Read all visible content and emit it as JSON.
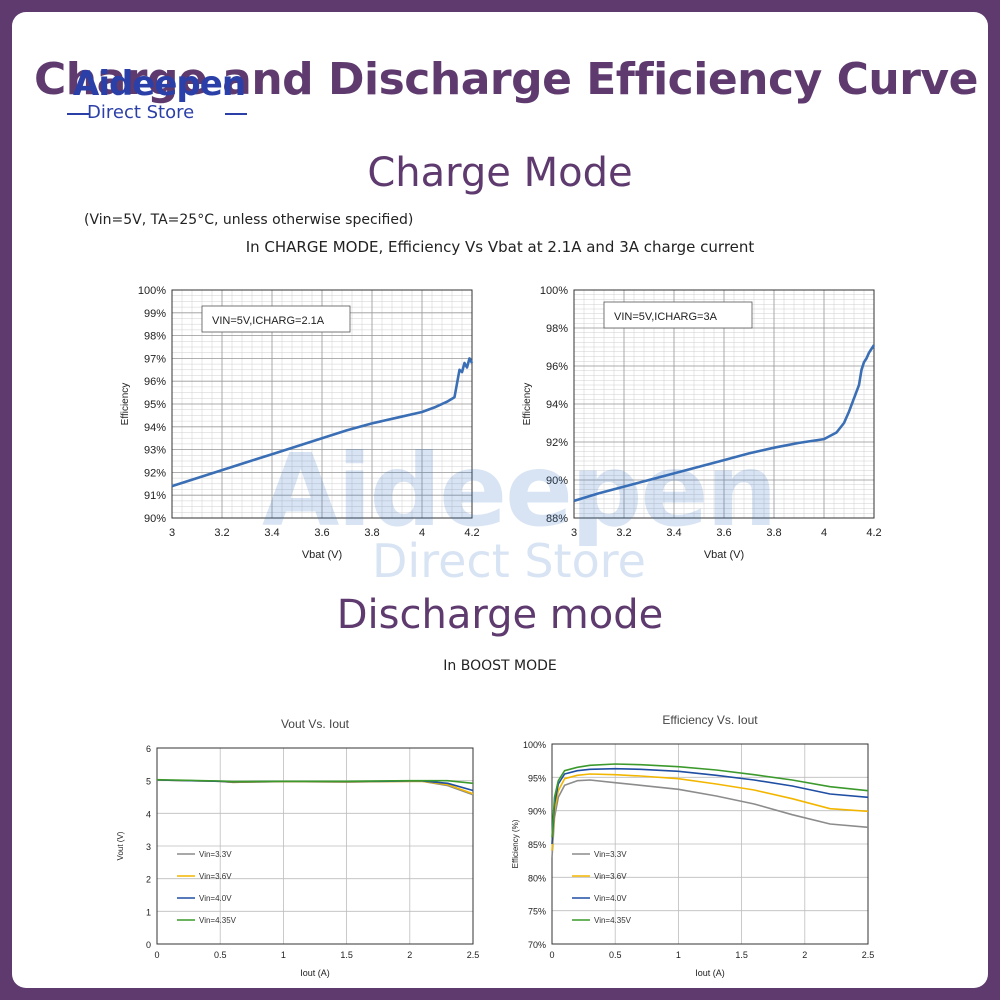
{
  "page": {
    "title": "Charge and Discharge Efficiency Curve",
    "logo_name": "Aideepen",
    "logo_sub": "Direct Store",
    "charge_heading": "Charge Mode",
    "conditions_note": "(Vin=5V, TA=25°C, unless otherwise specified)",
    "charge_caption": "In CHARGE MODE, Efficiency Vs Vbat at 2.1A and 3A charge current",
    "discharge_heading": "Discharge mode",
    "boost_caption": "In BOOST MODE",
    "watermark_name": "Aideepen",
    "watermark_sub": "Direct Store"
  },
  "colors": {
    "brand_purple": "#5e3a6e",
    "curve_blue": "#3a6eb5",
    "vin_3_3": "#8c8c8c",
    "vin_3_6": "#f2b600",
    "vin_4_0": "#1f4ea3",
    "vin_4_35": "#3c9a2c"
  },
  "chart_data": [
    {
      "type": "line",
      "annotation": "VIN=5V,ICHARG=2.1A",
      "xlabel": "Vbat (V)",
      "ylabel": "Efficiency",
      "xlim": [
        3,
        4.2
      ],
      "ylim": [
        90,
        100
      ],
      "x_ticks": [
        "3",
        "3.2",
        "3.4",
        "3.6",
        "3.8",
        "4",
        "4.2"
      ],
      "y_ticks": [
        "90%",
        "91%",
        "92%",
        "93%",
        "94%",
        "95%",
        "96%",
        "97%",
        "98%",
        "99%",
        "100%"
      ],
      "grid": true,
      "series": [
        {
          "x": [
            3.0,
            3.1,
            3.2,
            3.3,
            3.4,
            3.5,
            3.6,
            3.7,
            3.8,
            3.9,
            4.0,
            4.05,
            4.1,
            4.13,
            4.15,
            4.16,
            4.17,
            4.18,
            4.19,
            4.2
          ],
          "values": [
            91.4,
            91.75,
            92.1,
            92.45,
            92.8,
            93.15,
            93.5,
            93.85,
            94.15,
            94.4,
            94.65,
            94.85,
            95.1,
            95.3,
            96.5,
            96.4,
            96.8,
            96.6,
            97.0,
            96.8
          ]
        }
      ]
    },
    {
      "type": "line",
      "annotation": "VIN=5V,ICHARG=3A",
      "xlabel": "Vbat (V)",
      "ylabel": "Efficiency",
      "xlim": [
        3,
        4.2
      ],
      "ylim": [
        88,
        100
      ],
      "x_ticks": [
        "3",
        "3.2",
        "3.4",
        "3.6",
        "3.8",
        "4",
        "4.2"
      ],
      "y_ticks": [
        "88%",
        "90%",
        "92%",
        "94%",
        "96%",
        "98%",
        "100%"
      ],
      "grid": true,
      "series": [
        {
          "x": [
            3.0,
            3.1,
            3.2,
            3.3,
            3.4,
            3.5,
            3.6,
            3.7,
            3.8,
            3.9,
            4.0,
            4.05,
            4.08,
            4.1,
            4.12,
            4.14,
            4.15,
            4.16,
            4.17,
            4.18,
            4.19,
            4.2
          ],
          "values": [
            88.9,
            89.3,
            89.65,
            90.0,
            90.35,
            90.7,
            91.05,
            91.4,
            91.7,
            91.95,
            92.15,
            92.5,
            93.0,
            93.6,
            94.3,
            95.0,
            95.8,
            96.2,
            96.4,
            96.7,
            96.9,
            97.1
          ]
        }
      ]
    },
    {
      "type": "line",
      "title": "Vout Vs. Iout",
      "xlabel": "Iout (A)",
      "ylabel": "Vout (V)",
      "xlim": [
        0,
        2.5
      ],
      "ylim": [
        0,
        6
      ],
      "x_ticks": [
        "0",
        "0.5",
        "1",
        "1.5",
        "2",
        "2.5"
      ],
      "y_ticks": [
        "0",
        "1",
        "2",
        "3",
        "4",
        "5",
        "6"
      ],
      "grid": true,
      "legend": "left",
      "series": [
        {
          "name": "Vin=3.3V",
          "x": [
            0,
            0.5,
            0.6,
            1.0,
            1.5,
            2.0,
            2.1,
            2.3,
            2.5
          ],
          "values": [
            5.02,
            4.98,
            4.95,
            4.97,
            4.96,
            4.98,
            4.98,
            4.85,
            4.57
          ]
        },
        {
          "name": "Vin=3.6V",
          "x": [
            0,
            0.5,
            0.6,
            1.0,
            1.5,
            2.0,
            2.1,
            2.3,
            2.5
          ],
          "values": [
            5.02,
            4.98,
            4.95,
            4.97,
            4.96,
            4.98,
            4.98,
            4.88,
            4.6
          ]
        },
        {
          "name": "Vin=4.0V",
          "x": [
            0,
            0.5,
            0.6,
            1.0,
            1.5,
            2.0,
            2.1,
            2.3,
            2.5
          ],
          "values": [
            5.02,
            4.98,
            4.96,
            4.98,
            4.97,
            4.99,
            4.99,
            4.92,
            4.7
          ]
        },
        {
          "name": "Vin=4.35V",
          "x": [
            0,
            0.5,
            0.6,
            1.0,
            1.5,
            2.0,
            2.1,
            2.3,
            2.5
          ],
          "values": [
            5.03,
            4.99,
            4.97,
            4.98,
            4.98,
            5.0,
            5.0,
            5.0,
            4.92
          ]
        }
      ]
    },
    {
      "type": "line",
      "title": "Efficiency Vs. Iout",
      "xlabel": "Iout (A)",
      "ylabel": "Efficiency (%)",
      "xlim": [
        0,
        2.5
      ],
      "ylim": [
        70,
        100
      ],
      "x_ticks": [
        "0",
        "0.5",
        "1",
        "1.5",
        "2",
        "2.5"
      ],
      "y_ticks": [
        "70%",
        "75%",
        "80%",
        "85%",
        "90%",
        "95%",
        "100%"
      ],
      "grid": true,
      "legend": "left",
      "series": [
        {
          "name": "Vin=3.3V",
          "x": [
            0,
            0.02,
            0.05,
            0.1,
            0.2,
            0.3,
            0.5,
            0.7,
            1.0,
            1.3,
            1.6,
            1.9,
            2.2,
            2.5
          ],
          "values": [
            83,
            89,
            92,
            93.8,
            94.5,
            94.6,
            94.2,
            93.8,
            93.2,
            92.2,
            91.0,
            89.4,
            88.0,
            87.5
          ]
        },
        {
          "name": "Vin=3.6V",
          "x": [
            0,
            0.02,
            0.05,
            0.1,
            0.2,
            0.3,
            0.5,
            0.7,
            1.0,
            1.3,
            1.6,
            1.9,
            2.2,
            2.5
          ],
          "values": [
            84,
            90,
            93,
            94.8,
            95.3,
            95.5,
            95.4,
            95.2,
            94.8,
            94.0,
            93.1,
            91.8,
            90.3,
            89.9
          ]
        },
        {
          "name": "Vin=4.0V",
          "x": [
            0,
            0.02,
            0.05,
            0.1,
            0.2,
            0.3,
            0.5,
            0.7,
            1.0,
            1.3,
            1.6,
            1.9,
            2.2,
            2.5
          ],
          "values": [
            85,
            91,
            94,
            95.5,
            96.0,
            96.2,
            96.3,
            96.2,
            95.9,
            95.3,
            94.6,
            93.7,
            92.5,
            92.0
          ]
        },
        {
          "name": "Vin=4.35V",
          "x": [
            0,
            0.02,
            0.05,
            0.1,
            0.2,
            0.3,
            0.5,
            0.7,
            1.0,
            1.3,
            1.6,
            1.9,
            2.2,
            2.5
          ],
          "values": [
            86,
            92,
            94.5,
            96.0,
            96.5,
            96.8,
            97.0,
            96.9,
            96.6,
            96.1,
            95.4,
            94.6,
            93.6,
            93.0
          ]
        }
      ]
    }
  ]
}
